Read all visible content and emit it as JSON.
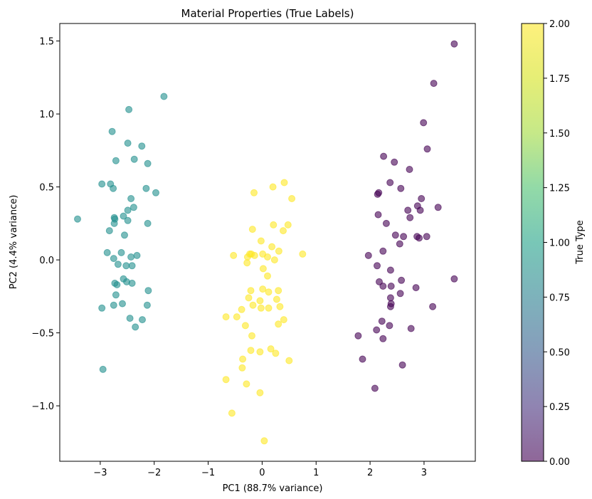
{
  "chart_data": {
    "type": "scatter",
    "title": "Material Properties (True Labels)",
    "xlabel": "PC1 (88.7% variance)",
    "ylabel": "PC2 (4.4% variance)",
    "xlim": [
      -3.75,
      3.95
    ],
    "ylim": [
      -1.38,
      1.62
    ],
    "xticks": [
      -3,
      -2,
      -1,
      0,
      1,
      2,
      3
    ],
    "yticks": [
      -1.0,
      -0.5,
      0.0,
      0.5,
      1.0,
      1.5
    ],
    "yticklabels": [
      "−1.0",
      "−0.5",
      "0.0",
      "0.5",
      "1.0",
      "1.5"
    ],
    "xticklabels": [
      "−3",
      "−2",
      "−1",
      "0",
      "1",
      "2",
      "3"
    ],
    "grid": false,
    "colorbar": {
      "label": "True Type",
      "range": [
        0.0,
        2.0
      ],
      "colormap": "viridis",
      "ticks": [
        0.0,
        0.25,
        0.5,
        0.75,
        1.0,
        1.25,
        1.5,
        1.75,
        2.0
      ],
      "ticklabels": [
        "0.00",
        "0.25",
        "0.50",
        "0.75",
        "1.00",
        "1.25",
        "1.50",
        "1.75",
        "2.00"
      ]
    },
    "colors": {
      "0": "#440154",
      "1": "#21908d",
      "2": "#fde725"
    },
    "series": [
      {
        "value": 1,
        "points": [
          [
            -1.82,
            1.12
          ],
          [
            -2.47,
            1.03
          ],
          [
            -2.78,
            0.88
          ],
          [
            -2.49,
            0.8
          ],
          [
            -2.23,
            0.78
          ],
          [
            -2.71,
            0.68
          ],
          [
            -2.37,
            0.69
          ],
          [
            -2.12,
            0.66
          ],
          [
            -2.97,
            0.52
          ],
          [
            -2.81,
            0.52
          ],
          [
            -2.76,
            0.49
          ],
          [
            -2.15,
            0.49
          ],
          [
            -1.97,
            0.46
          ],
          [
            -2.43,
            0.42
          ],
          [
            -2.38,
            0.36
          ],
          [
            -2.49,
            0.34
          ],
          [
            -2.57,
            0.3
          ],
          [
            -3.42,
            0.28
          ],
          [
            -2.74,
            0.29
          ],
          [
            -2.73,
            0.28
          ],
          [
            -2.49,
            0.27
          ],
          [
            -2.74,
            0.25
          ],
          [
            -2.12,
            0.25
          ],
          [
            -2.83,
            0.2
          ],
          [
            -2.55,
            0.17
          ],
          [
            -2.87,
            0.05
          ],
          [
            -2.61,
            0.05
          ],
          [
            -2.32,
            0.03
          ],
          [
            -2.75,
            0.01
          ],
          [
            -2.43,
            0.02
          ],
          [
            -2.67,
            -0.03
          ],
          [
            -2.52,
            -0.04
          ],
          [
            -2.41,
            -0.04
          ],
          [
            -2.57,
            -0.13
          ],
          [
            -2.73,
            -0.16
          ],
          [
            -2.51,
            -0.15
          ],
          [
            -2.41,
            -0.16
          ],
          [
            -2.69,
            -0.17
          ],
          [
            -2.11,
            -0.21
          ],
          [
            -2.71,
            -0.24
          ],
          [
            -2.59,
            -0.3
          ],
          [
            -2.75,
            -0.31
          ],
          [
            -2.13,
            -0.31
          ],
          [
            -2.97,
            -0.33
          ],
          [
            -2.45,
            -0.4
          ],
          [
            -2.22,
            -0.41
          ],
          [
            -2.35,
            -0.46
          ],
          [
            -2.95,
            -0.75
          ]
        ]
      },
      {
        "value": 2,
        "points": [
          [
            0.41,
            0.53
          ],
          [
            0.2,
            0.5
          ],
          [
            -0.15,
            0.46
          ],
          [
            0.55,
            0.42
          ],
          [
            -0.18,
            0.21
          ],
          [
            0.21,
            0.24
          ],
          [
            0.48,
            0.24
          ],
          [
            0.39,
            0.2
          ],
          [
            -0.02,
            0.13
          ],
          [
            0.18,
            0.09
          ],
          [
            0.01,
            0.04
          ],
          [
            -0.14,
            0.03
          ],
          [
            -0.23,
            0.04
          ],
          [
            -0.2,
            0.04
          ],
          [
            0.31,
            0.06
          ],
          [
            0.75,
            0.04
          ],
          [
            -0.53,
            0.03
          ],
          [
            -0.27,
            0.02
          ],
          [
            -0.28,
            -0.02
          ],
          [
            0.1,
            0.02
          ],
          [
            0.23,
            0.0
          ],
          [
            0.02,
            -0.06
          ],
          [
            0.1,
            -0.11
          ],
          [
            -0.21,
            -0.21
          ],
          [
            0.01,
            -0.2
          ],
          [
            0.12,
            -0.22
          ],
          [
            0.3,
            -0.21
          ],
          [
            -0.25,
            -0.26
          ],
          [
            0.27,
            -0.27
          ],
          [
            -0.04,
            -0.28
          ],
          [
            0.33,
            -0.32
          ],
          [
            -0.17,
            -0.31
          ],
          [
            -0.02,
            -0.33
          ],
          [
            0.12,
            -0.33
          ],
          [
            -0.38,
            -0.34
          ],
          [
            -0.67,
            -0.39
          ],
          [
            -0.47,
            -0.39
          ],
          [
            0.4,
            -0.41
          ],
          [
            0.3,
            -0.44
          ],
          [
            -0.31,
            -0.45
          ],
          [
            -0.19,
            -0.52
          ],
          [
            -0.21,
            -0.62
          ],
          [
            0.16,
            -0.61
          ],
          [
            -0.04,
            -0.63
          ],
          [
            0.25,
            -0.64
          ],
          [
            -0.36,
            -0.68
          ],
          [
            0.5,
            -0.69
          ],
          [
            -0.37,
            -0.74
          ],
          [
            -0.67,
            -0.82
          ],
          [
            -0.29,
            -0.85
          ],
          [
            -0.04,
            -0.91
          ],
          [
            -0.56,
            -1.05
          ],
          [
            0.04,
            -1.24
          ]
        ]
      },
      {
        "value": 0,
        "points": [
          [
            3.56,
            1.48
          ],
          [
            3.18,
            1.21
          ],
          [
            2.99,
            0.94
          ],
          [
            3.06,
            0.76
          ],
          [
            2.25,
            0.71
          ],
          [
            2.45,
            0.67
          ],
          [
            2.73,
            0.62
          ],
          [
            2.37,
            0.53
          ],
          [
            2.14,
            0.45
          ],
          [
            2.16,
            0.46
          ],
          [
            2.57,
            0.49
          ],
          [
            2.95,
            0.42
          ],
          [
            2.88,
            0.37
          ],
          [
            3.26,
            0.36
          ],
          [
            2.7,
            0.34
          ],
          [
            2.93,
            0.34
          ],
          [
            2.15,
            0.31
          ],
          [
            2.74,
            0.29
          ],
          [
            2.3,
            0.25
          ],
          [
            2.47,
            0.17
          ],
          [
            2.62,
            0.16
          ],
          [
            2.87,
            0.16
          ],
          [
            3.05,
            0.16
          ],
          [
            2.91,
            0.15
          ],
          [
            2.55,
            0.11
          ],
          [
            2.24,
            0.06
          ],
          [
            1.97,
            0.03
          ],
          [
            2.13,
            -0.04
          ],
          [
            2.38,
            -0.07
          ],
          [
            2.17,
            -0.15
          ],
          [
            2.58,
            -0.14
          ],
          [
            3.56,
            -0.13
          ],
          [
            2.24,
            -0.18
          ],
          [
            2.39,
            -0.18
          ],
          [
            2.85,
            -0.19
          ],
          [
            2.56,
            -0.23
          ],
          [
            2.38,
            -0.26
          ],
          [
            2.39,
            -0.3
          ],
          [
            2.38,
            -0.32
          ],
          [
            3.16,
            -0.32
          ],
          [
            2.22,
            -0.42
          ],
          [
            2.36,
            -0.45
          ],
          [
            2.76,
            -0.47
          ],
          [
            2.12,
            -0.48
          ],
          [
            1.78,
            -0.52
          ],
          [
            2.24,
            -0.54
          ],
          [
            1.86,
            -0.68
          ],
          [
            2.6,
            -0.72
          ],
          [
            2.09,
            -0.88
          ]
        ]
      }
    ]
  }
}
